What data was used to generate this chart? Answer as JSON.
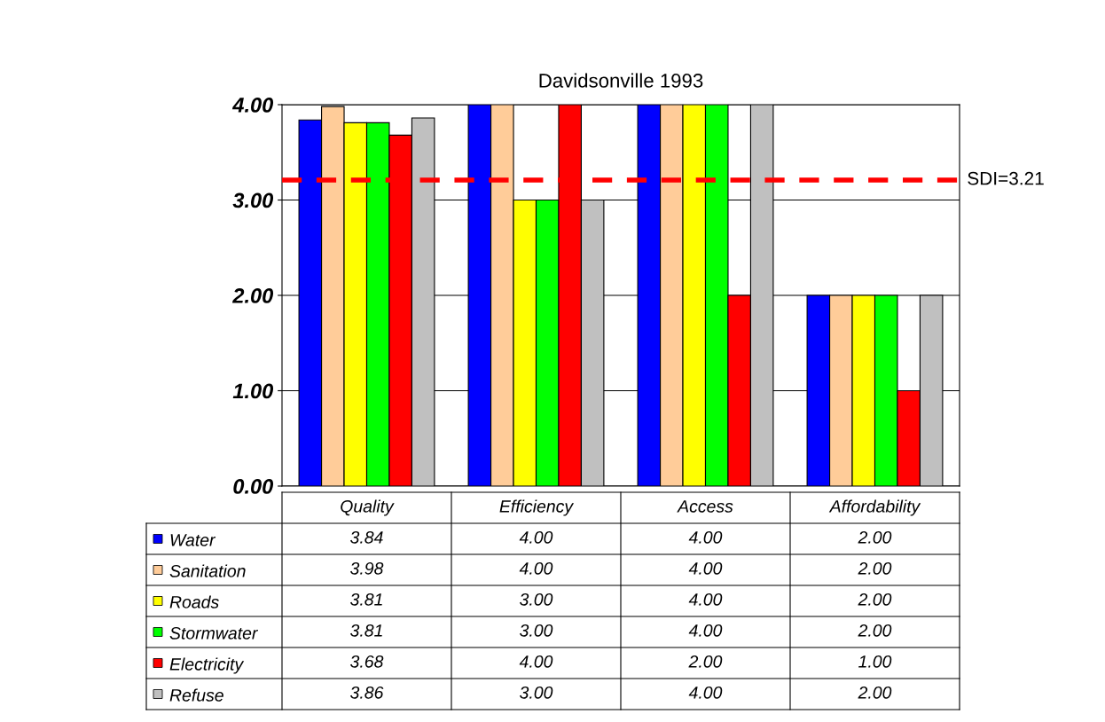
{
  "chart_data": {
    "type": "bar",
    "title": "Davidsonville 1993",
    "categories": [
      "Quality",
      "Efficiency",
      "Access",
      "Affordability"
    ],
    "series": [
      {
        "name": "Water",
        "color": "#0000ff",
        "values": [
          3.84,
          4.0,
          4.0,
          2.0
        ],
        "value_labels": [
          "3.84",
          "4.00",
          "4.00",
          "2.00"
        ]
      },
      {
        "name": "Sanitation",
        "color": "#ffcc99",
        "values": [
          3.98,
          4.0,
          4.0,
          2.0
        ],
        "value_labels": [
          "3.98",
          "4.00",
          "4.00",
          "2.00"
        ]
      },
      {
        "name": "Roads",
        "color": "#ffff00",
        "values": [
          3.81,
          3.0,
          4.0,
          2.0
        ],
        "value_labels": [
          "3.81",
          "3.00",
          "4.00",
          "2.00"
        ]
      },
      {
        "name": "Stormwater",
        "color": "#00ff00",
        "values": [
          3.81,
          3.0,
          4.0,
          2.0
        ],
        "value_labels": [
          "3.81",
          "3.00",
          "4.00",
          "2.00"
        ]
      },
      {
        "name": "Electricity",
        "color": "#ff0000",
        "values": [
          3.68,
          4.0,
          2.0,
          1.0
        ],
        "value_labels": [
          "3.68",
          "4.00",
          "2.00",
          "1.00"
        ]
      },
      {
        "name": "Refuse",
        "color": "#c0c0c0",
        "values": [
          3.86,
          3.0,
          4.0,
          2.0
        ],
        "value_labels": [
          "3.86",
          "3.00",
          "4.00",
          "2.00"
        ]
      }
    ],
    "ylim": [
      0,
      4
    ],
    "yticks": [
      {
        "value": 0,
        "label": "0.00"
      },
      {
        "value": 1,
        "label": "1.00"
      },
      {
        "value": 2,
        "label": "2.00"
      },
      {
        "value": 3,
        "label": "3.00"
      },
      {
        "value": 4,
        "label": "4.00"
      }
    ],
    "ref_lines": [
      {
        "axis": "y",
        "value": 3.21,
        "label": "SDI=3.21",
        "color": "#ff0000",
        "line_style": "dashed"
      }
    ],
    "grid": "y",
    "legend": "bottom"
  }
}
